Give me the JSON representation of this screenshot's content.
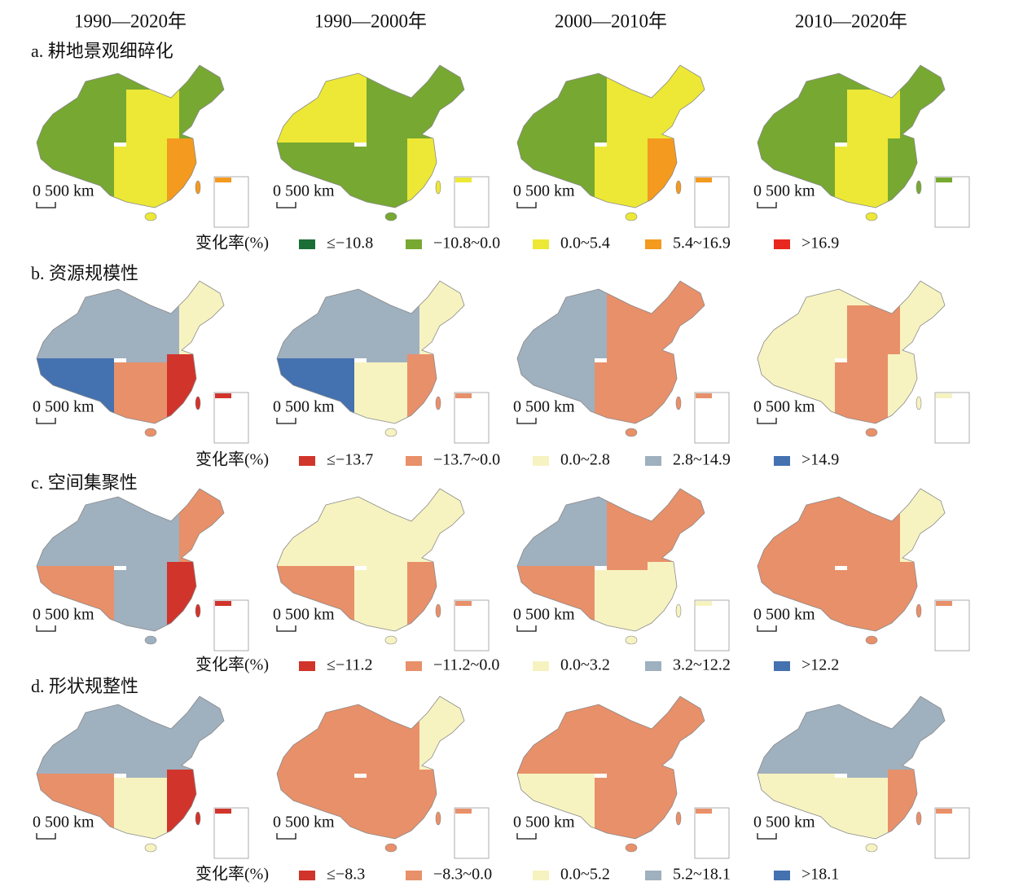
{
  "columns": [
    "1990—2020年",
    "1990—2000年",
    "2000—2010年",
    "2010—2020年"
  ],
  "scale_label": "0 500 km",
  "rows": [
    {
      "title": "a. 耕地景观细碎化",
      "legend_title": "变化率(%)",
      "legend": [
        {
          "label": "≤−10.8",
          "color": "#1b6e35"
        },
        {
          "label": "−10.8~0.0",
          "color": "#77a832"
        },
        {
          "label": "0.0~5.4",
          "color": "#ece835"
        },
        {
          "label": "5.4~16.9",
          "color": "#f39a1f"
        },
        {
          "label": ">16.9",
          "color": "#e8281e"
        }
      ]
    },
    {
      "title": "b. 资源规模性",
      "legend_title": "变化率(%)",
      "legend": [
        {
          "label": "≤−13.7",
          "color": "#d1342b"
        },
        {
          "label": "−13.7~0.0",
          "color": "#e8906a"
        },
        {
          "label": "0.0~2.8",
          "color": "#f7f3c0"
        },
        {
          "label": "2.8~14.9",
          "color": "#9fb0bf"
        },
        {
          "label": ">14.9",
          "color": "#4471b0"
        }
      ]
    },
    {
      "title": "c. 空间集聚性",
      "legend_title": "变化率(%)",
      "legend": [
        {
          "label": "≤−11.2",
          "color": "#d1342b"
        },
        {
          "label": "−11.2~0.0",
          "color": "#e8906a"
        },
        {
          "label": "0.0~3.2",
          "color": "#f7f3c0"
        },
        {
          "label": "3.2~12.2",
          "color": "#9fb0bf"
        },
        {
          "label": ">12.2",
          "color": "#4471b0"
        }
      ]
    },
    {
      "title": "d. 形状规整性",
      "legend_title": "变化率(%)",
      "legend": [
        {
          "label": "≤−8.3",
          "color": "#d1342b"
        },
        {
          "label": "−8.3~0.0",
          "color": "#e8906a"
        },
        {
          "label": "0.0~5.2",
          "color": "#f7f3c0"
        },
        {
          "label": "5.2~18.1",
          "color": "#9fb0bf"
        },
        {
          "label": ">18.1",
          "color": "#4471b0"
        }
      ]
    }
  ]
}
